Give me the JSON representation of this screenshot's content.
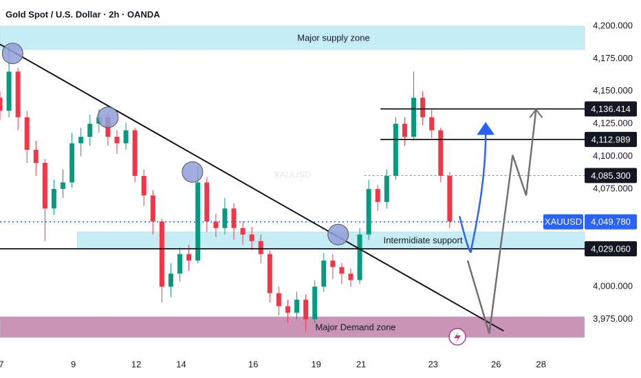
{
  "chart_data": {
    "type": "candlestick",
    "title": "Gold Spot / U.S. Dollar · 2h · OANDA",
    "watermark": "XAUUSD",
    "x": [
      0,
      1,
      2,
      3,
      4,
      5,
      6,
      7,
      8,
      9,
      10,
      11,
      12,
      13,
      14,
      15,
      16,
      17,
      18,
      19,
      20,
      21,
      22,
      23,
      24,
      25,
      26,
      27,
      28,
      29,
      30,
      31,
      32,
      33,
      34,
      35,
      36,
      37,
      38,
      39,
      40,
      41,
      42,
      43,
      44,
      45,
      46,
      47,
      48,
      49,
      50
    ],
    "open": [
      4145,
      4135,
      4165,
      4130,
      4105,
      4095,
      4060,
      4075,
      4080,
      4110,
      4115,
      4125,
      4130,
      4115,
      4110,
      4120,
      4085,
      4070,
      4050,
      4000,
      4010,
      4025,
      4020,
      4080,
      4050,
      4045,
      4060,
      4045,
      4040,
      4035,
      4025,
      3995,
      3985,
      3980,
      3990,
      3975,
      4000,
      4020,
      4015,
      4010,
      4005,
      4040,
      4075,
      4065,
      4085,
      4125,
      4115,
      4145,
      4130,
      4120,
      4085
    ],
    "high": [
      4150,
      4185,
      4168,
      4135,
      4112,
      4098,
      4082,
      4090,
      4118,
      4122,
      4132,
      4136,
      4134,
      4120,
      4126,
      4122,
      4090,
      4074,
      4052,
      4018,
      4030,
      4032,
      4092,
      4084,
      4056,
      4068,
      4064,
      4050,
      4046,
      4040,
      4028,
      4000,
      3990,
      3996,
      3994,
      4005,
      4026,
      4025,
      4018,
      4014,
      4045,
      4082,
      4078,
      4090,
      4130,
      4130,
      4165,
      4150,
      4136,
      4122,
      4088
    ],
    "low": [
      4128,
      4130,
      4120,
      4095,
      4085,
      4035,
      4055,
      4068,
      4076,
      4100,
      4108,
      4118,
      4108,
      4102,
      4105,
      4080,
      4062,
      4040,
      3988,
      3992,
      4004,
      4012,
      4018,
      4042,
      4038,
      4040,
      4036,
      4032,
      4028,
      4018,
      3988,
      3978,
      3972,
      3975,
      3965,
      3972,
      3996,
      4006,
      4002,
      4000,
      4002,
      4036,
      4058,
      4060,
      4082,
      4108,
      4112,
      4124,
      4114,
      4080,
      4045
    ],
    "close": [
      4135,
      4165,
      4130,
      4105,
      4095,
      4060,
      4075,
      4080,
      4110,
      4115,
      4125,
      4130,
      4115,
      4110,
      4120,
      4085,
      4070,
      4050,
      4000,
      4010,
      4025,
      4020,
      4080,
      4050,
      4045,
      4060,
      4045,
      4040,
      4035,
      4025,
      3995,
      3985,
      3980,
      3990,
      3975,
      4000,
      4020,
      4015,
      4010,
      4005,
      4040,
      4075,
      4065,
      4085,
      4125,
      4115,
      4145,
      4130,
      4120,
      4085,
      4050
    ],
    "up_color": "#089981",
    "down_color": "#f23645",
    "xlim": [
      0,
      65
    ],
    "ylim": [
      3951,
      4220
    ],
    "xticks": [
      {
        "value": 0,
        "label": "7"
      },
      {
        "value": 8,
        "label": "9"
      },
      {
        "value": 15,
        "label": "12"
      },
      {
        "value": 20,
        "label": "14"
      },
      {
        "value": 28,
        "label": "16"
      },
      {
        "value": 35,
        "label": "19"
      },
      {
        "value": 40,
        "label": "21"
      },
      {
        "value": 48,
        "label": "23"
      },
      {
        "value": 55,
        "label": "26"
      },
      {
        "value": 60,
        "label": "28"
      }
    ],
    "yticks": [
      {
        "value": 3975,
        "label": "3,975.000"
      },
      {
        "value": 4000,
        "label": "4,000.000"
      },
      {
        "value": 4075,
        "label": "4,075.000"
      },
      {
        "value": 4100,
        "label": "4,100.000"
      },
      {
        "value": 4125,
        "label": "4,125.000"
      },
      {
        "value": 4150,
        "label": "4,150.000"
      },
      {
        "value": 4175,
        "label": "4,175.000"
      },
      {
        "value": 4200,
        "label": "4,200.000"
      }
    ],
    "zones": [
      {
        "label": "Major supply zone",
        "low": 4182,
        "high": 4200,
        "x_start": 0,
        "color": "#c6ecf5"
      },
      {
        "label": "Intermidiate support",
        "low": 4029,
        "high": 4042,
        "x_start": 8.6,
        "color": "#c6ecf5"
      },
      {
        "label": "Major Demand zone",
        "low": 3961,
        "high": 3977,
        "x_start": 0,
        "color": "#c994b6"
      }
    ],
    "levels": [
      {
        "value": 4136.414,
        "label": "4,136.414",
        "x_start": 42.3,
        "style": "solid"
      },
      {
        "value": 4112.989,
        "label": "4,112.989",
        "x_start": 42.3,
        "style": "solid"
      },
      {
        "value": 4085.3,
        "label": "4,085.300",
        "x_start": 40.5,
        "style": "dashed"
      },
      {
        "value": 4029.06,
        "label": "4,029.060",
        "x_start": 0,
        "style": "solid"
      }
    ],
    "current_price": {
      "value": 4049.78,
      "label": "4,049.780",
      "symbol": "XAUUSD",
      "color": "#2962ff"
    },
    "trendline": {
      "x": [
        0,
        56
      ],
      "y": [
        4186,
        3966
      ]
    },
    "touches": {
      "x": [
        1.4,
        12,
        21.4,
        37.6
      ],
      "y": [
        4179,
        4130,
        4088,
        4040
      ]
    },
    "projections": [
      {
        "color": "#2962ff",
        "x": [
          51.1,
          52.4,
          54,
          54
        ],
        "y": [
          4054,
          4029,
          4080,
          4117
        ]
      },
      {
        "color": "#707070",
        "x": [
          52,
          54.4,
          57,
          58.5,
          59.6
        ],
        "y": [
          4020,
          3964,
          4101,
          4070,
          4136
        ]
      }
    ]
  }
}
